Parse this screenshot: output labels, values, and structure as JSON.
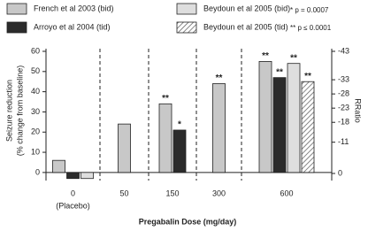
{
  "chart_data": {
    "type": "bar",
    "x_label": "Pregabalin Dose (mg/day)",
    "y_label": [
      "Seizure reduction",
      "(% change from baseline)"
    ],
    "y2_label": "RRatio",
    "categories": [
      "0",
      "50",
      "150",
      "300",
      "600"
    ],
    "category_note": "(Placebo)",
    "series": [
      {
        "name": "French et al 2003 (bid)",
        "color": "#c8c8c8",
        "values": [
          6,
          24,
          34,
          44,
          55
        ],
        "sig": [
          null,
          null,
          "**",
          "**",
          "**"
        ]
      },
      {
        "name": "Arroyo et al 2004 (tid)",
        "color": "#2b2b2b",
        "values": [
          -3,
          null,
          21,
          null,
          47
        ],
        "sig": [
          null,
          null,
          "*",
          null,
          "**"
        ]
      },
      {
        "name": "Beydoun et al 2005 (bid)",
        "color": "#dedede",
        "values": [
          -3,
          null,
          null,
          null,
          54
        ],
        "sig": [
          null,
          null,
          null,
          null,
          "**"
        ]
      },
      {
        "name": "Beydoun et al 2005 (tid)",
        "color": "#555555",
        "hatch": true,
        "values": [
          null,
          null,
          null,
          null,
          45
        ],
        "sig": [
          null,
          null,
          null,
          null,
          "**"
        ]
      }
    ],
    "notes": [
      "* p = 0.0007",
      "** p ≤ 0.0001"
    ],
    "ylim": [
      -4,
      60
    ],
    "yticks": [
      0,
      10,
      20,
      30,
      40,
      50,
      60
    ],
    "y2lim": [
      2.5,
      -43
    ],
    "y2ticks": [
      0,
      -11,
      -18,
      -23,
      -28,
      -33,
      -43
    ],
    "legend": "top"
  }
}
